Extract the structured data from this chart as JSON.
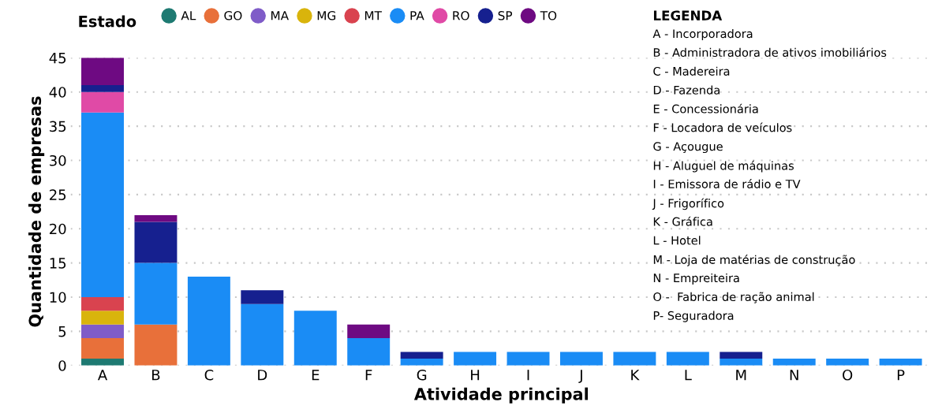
{
  "chart_data": {
    "type": "bar",
    "stacked": true,
    "xlabel": "Atividade principal",
    "ylabel": "Quantidade de empresas",
    "legend_title": "Estado",
    "categories": [
      "A",
      "B",
      "C",
      "D",
      "E",
      "F",
      "G",
      "H",
      "I",
      "J",
      "K",
      "L",
      "M",
      "N",
      "O",
      "P"
    ],
    "series": [
      {
        "name": "AL",
        "color": "#1e7a72",
        "values": [
          1,
          0,
          0,
          0,
          0,
          0,
          0,
          0,
          0,
          0,
          0,
          0,
          0,
          0,
          0,
          0
        ]
      },
      {
        "name": "GO",
        "color": "#e8703a",
        "values": [
          3,
          6,
          0,
          0,
          0,
          0,
          0,
          0,
          0,
          0,
          0,
          0,
          0,
          0,
          0,
          0
        ]
      },
      {
        "name": "MA",
        "color": "#7f5cc8",
        "values": [
          2,
          0,
          0,
          0,
          0,
          0,
          0,
          0,
          0,
          0,
          0,
          0,
          0,
          0,
          0,
          0
        ]
      },
      {
        "name": "MG",
        "color": "#d9b40c",
        "values": [
          2,
          0,
          0,
          0,
          0,
          0,
          0,
          0,
          0,
          0,
          0,
          0,
          0,
          0,
          0,
          0
        ]
      },
      {
        "name": "MT",
        "color": "#d9434f",
        "values": [
          2,
          0,
          0,
          0,
          0,
          0,
          0,
          0,
          0,
          0,
          0,
          0,
          0,
          0,
          0,
          0
        ]
      },
      {
        "name": "PA",
        "color": "#1a8cf5",
        "values": [
          27,
          9,
          13,
          9,
          8,
          4,
          1,
          2,
          2,
          2,
          2,
          2,
          1,
          1,
          1,
          1
        ]
      },
      {
        "name": "RO",
        "color": "#e04aa6",
        "values": [
          3,
          0,
          0,
          0,
          0,
          0,
          0,
          0,
          0,
          0,
          0,
          0,
          0,
          0,
          0,
          0
        ]
      },
      {
        "name": "SP",
        "color": "#16208f",
        "values": [
          1,
          6,
          0,
          2,
          0,
          0,
          1,
          0,
          0,
          0,
          0,
          0,
          1,
          0,
          0,
          0
        ]
      },
      {
        "name": "TO",
        "color": "#6e0a82",
        "values": [
          4,
          1,
          0,
          0,
          0,
          2,
          0,
          0,
          0,
          0,
          0,
          0,
          0,
          0,
          0,
          0
        ]
      }
    ],
    "ylim": [
      0,
      45
    ],
    "yticks": [
      0,
      5,
      10,
      15,
      20,
      25,
      30,
      35,
      40,
      45
    ],
    "grid": "y",
    "legend": "top left",
    "annotations": [
      "LEGENDA",
      "A - Incorporadora",
      "B - Administradora de ativos imobiliários",
      "C - Madereira",
      "D - Fazenda",
      "E - Concessionária",
      "F - Locadora de veículos",
      "G - Açougue",
      "H - Aluguel de máquinas",
      "I - Emissora de rádio e TV",
      "J - Frigorífico",
      "K - Gráfica",
      "L - Hotel",
      "M - Loja de matérias de construção",
      "N - Empreiteira",
      "O -  Fabrica de ração animal",
      "P- Seguradora"
    ]
  }
}
